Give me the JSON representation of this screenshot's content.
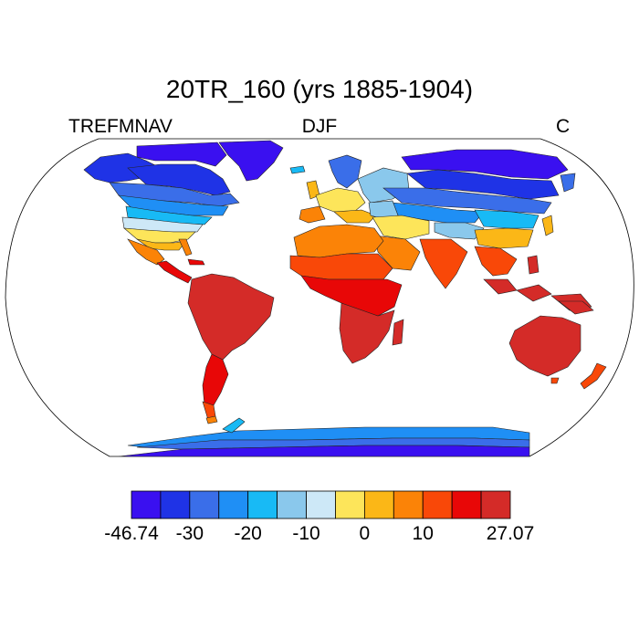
{
  "title": "20TR_160 (yrs 1885-1904)",
  "variable": "TREFMNAV",
  "season": "DJF",
  "units": "C",
  "projection": "Robinson",
  "colorbar": {
    "colors": [
      "#3a10f0",
      "#1f33e6",
      "#3a6ee9",
      "#1f8ff5",
      "#18baf5",
      "#8ac8ec",
      "#cde8f7",
      "#fde55a",
      "#fbb717",
      "#fb8307",
      "#f94808",
      "#e80707",
      "#d42b28"
    ],
    "labels": [
      "-46.74",
      "-30",
      "-20",
      "-10",
      "0",
      "10",
      "27.07"
    ],
    "value_range": [
      -46.74,
      27.07
    ]
  }
}
